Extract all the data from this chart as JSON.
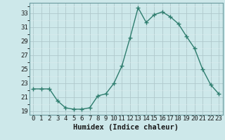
{
  "x": [
    0,
    1,
    2,
    3,
    4,
    5,
    6,
    7,
    8,
    9,
    10,
    11,
    12,
    13,
    14,
    15,
    16,
    17,
    18,
    19,
    20,
    21,
    22,
    23
  ],
  "y": [
    22.2,
    22.2,
    22.2,
    20.5,
    19.5,
    19.3,
    19.3,
    19.5,
    21.2,
    21.5,
    23.0,
    25.5,
    29.5,
    33.8,
    31.7,
    32.8,
    33.2,
    32.5,
    31.5,
    29.7,
    28.0,
    25.0,
    22.8,
    21.5
  ],
  "line_color": "#2e7d6e",
  "marker": "+",
  "marker_size": 4,
  "marker_lw": 1.0,
  "bg_color": "#cde8ea",
  "grid_color_major": "#b0c8cc",
  "grid_color_minor": "#daeaec",
  "xlabel": "Humidex (Indice chaleur)",
  "ylim": [
    18.5,
    34.5
  ],
  "xlim": [
    -0.5,
    23.5
  ],
  "yticks": [
    19,
    21,
    23,
    25,
    27,
    29,
    31,
    33
  ],
  "xticks": [
    0,
    1,
    2,
    3,
    4,
    5,
    6,
    7,
    8,
    9,
    10,
    11,
    12,
    13,
    14,
    15,
    16,
    17,
    18,
    19,
    20,
    21,
    22,
    23
  ],
  "tick_fontsize": 6.5,
  "xlabel_fontsize": 7.5,
  "line_width": 1.0
}
